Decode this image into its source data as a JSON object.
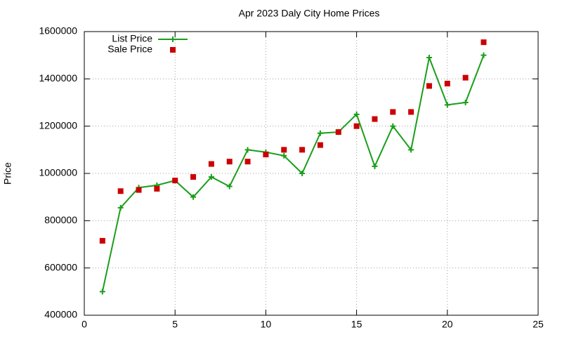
{
  "chart_data": {
    "type": "line",
    "title": "Apr 2023 Daly City Home Prices",
    "y_label": "Price",
    "x": [
      1,
      2,
      3,
      4,
      5,
      6,
      7,
      8,
      9,
      10,
      11,
      12,
      13,
      14,
      15,
      16,
      17,
      18,
      19,
      20,
      21,
      22
    ],
    "series": [
      {
        "name": "List Price",
        "color": "#1a9e1a",
        "mode": "lines+markers",
        "marker": "plus",
        "values": [
          500000,
          855000,
          940000,
          950000,
          970000,
          900000,
          985000,
          945000,
          1100000,
          1090000,
          1075000,
          1000000,
          1170000,
          1175000,
          1250000,
          1030000,
          1200000,
          1100000,
          1490000,
          1290000,
          1300000,
          1500000
        ]
      },
      {
        "name": "Sale Price",
        "color": "#cc0000",
        "mode": "markers",
        "marker": "square",
        "values": [
          715000,
          925000,
          930000,
          935000,
          970000,
          985000,
          1040000,
          1050000,
          1050000,
          1080000,
          1100000,
          1100000,
          1120000,
          1175000,
          1200000,
          1230000,
          1260000,
          1260000,
          1370000,
          1380000,
          1405000,
          1555000
        ]
      }
    ],
    "xlim": [
      0,
      25
    ],
    "xticks": [
      0,
      5,
      10,
      15,
      20,
      25
    ],
    "ylim": [
      400000,
      1600000
    ],
    "yticks": [
      400000,
      600000,
      800000,
      1000000,
      1200000,
      1400000,
      1600000
    ],
    "grid": true,
    "legend": "top-left"
  }
}
